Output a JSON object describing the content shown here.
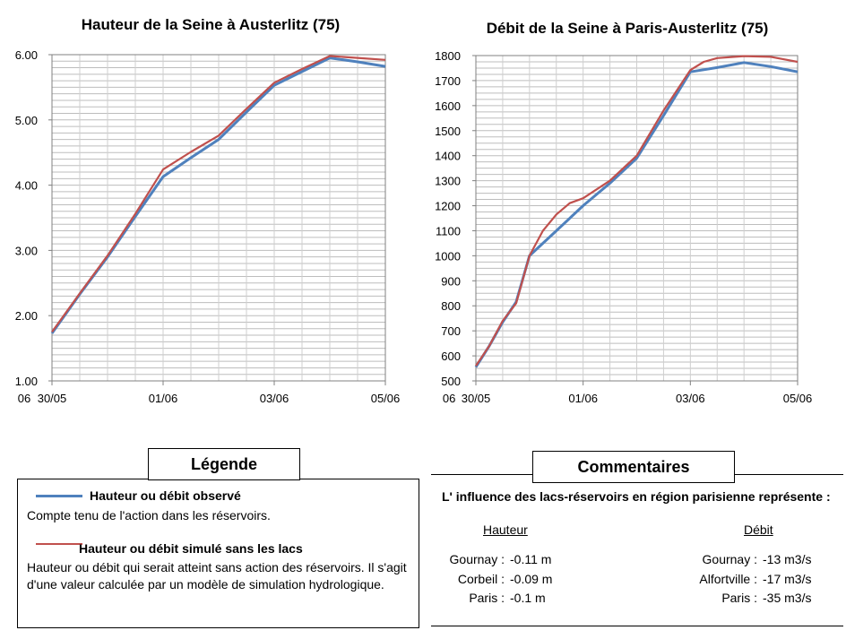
{
  "chart_data": [
    {
      "type": "line",
      "title": "Hauteur de la Seine à Austerlitz (75)",
      "x_ticks": [
        "06",
        "30/05",
        "01/06",
        "03/06",
        "05/06"
      ],
      "y_ticks": [
        "1.00",
        "2.00",
        "3.00",
        "4.00",
        "5.00",
        "6.00"
      ],
      "ylim": [
        1.0,
        6.0
      ],
      "xlim": [
        0,
        6
      ],
      "grid": true,
      "series": [
        {
          "name": "Hauteur ou débit observé",
          "color": "#4f81bd",
          "x": [
            0,
            0.5,
            1,
            1.5,
            2,
            2.5,
            3,
            3.5,
            4,
            4.5,
            5,
            5.5,
            6
          ],
          "y": [
            1.73,
            2.33,
            2.9,
            3.52,
            4.13,
            4.42,
            4.7,
            5.12,
            5.53,
            5.74,
            5.95,
            5.89,
            5.82
          ]
        },
        {
          "name": "Hauteur ou débit simulé sans les lacs",
          "color": "#c0504d",
          "x": [
            0,
            0.5,
            1,
            1.5,
            2,
            2.5,
            3,
            3.5,
            4,
            4.5,
            5,
            5.5,
            6
          ],
          "y": [
            1.75,
            2.34,
            2.92,
            3.56,
            4.24,
            4.51,
            4.76,
            5.17,
            5.57,
            5.78,
            5.98,
            5.95,
            5.92
          ]
        }
      ]
    },
    {
      "type": "line",
      "title": "Débit de la Seine à Paris-Austerlitz (75)",
      "x_ticks": [
        "06",
        "30/05",
        "01/06",
        "03/06",
        "05/06"
      ],
      "y_ticks": [
        "500",
        "600",
        "700",
        "800",
        "900",
        "1000",
        "1100",
        "1200",
        "1300",
        "1400",
        "1500",
        "1600",
        "1700",
        "1800"
      ],
      "ylim": [
        500,
        1800
      ],
      "xlim": [
        0,
        6
      ],
      "grid": true,
      "series": [
        {
          "name": "Hauteur ou débit observé",
          "color": "#4f81bd",
          "x": [
            0,
            0.25,
            0.5,
            0.75,
            1,
            1.5,
            2,
            2.5,
            3,
            3.5,
            4,
            4.5,
            5,
            5.5,
            6
          ],
          "y": [
            555,
            640,
            735,
            815,
            1000,
            1100,
            1200,
            1290,
            1390,
            1560,
            1735,
            1752,
            1772,
            1756,
            1735
          ]
        },
        {
          "name": "Hauteur ou débit simulé sans les lacs",
          "color": "#c0504d",
          "x": [
            0,
            0.25,
            0.5,
            0.75,
            1,
            1.25,
            1.5,
            1.75,
            2,
            2.5,
            3,
            3.5,
            4,
            4.25,
            4.5,
            5,
            5.5,
            6
          ],
          "y": [
            560,
            640,
            740,
            810,
            1000,
            1100,
            1165,
            1210,
            1230,
            1300,
            1400,
            1580,
            1742,
            1775,
            1790,
            1798,
            1795,
            1775
          ]
        }
      ]
    }
  ],
  "legend": {
    "header": "Légende",
    "observed_title": "Hauteur ou débit observé",
    "observed_text": "Compte tenu de l'action dans les réservoirs.",
    "simulated_title": "Hauteur ou débit simulé sans les lacs",
    "simulated_text": "Hauteur ou débit qui serait atteint sans action des réservoirs. Il s'agit d'une valeur calculée par un modèle de simulation hydrologique."
  },
  "comments": {
    "header": "Commentaires",
    "intro": "L' influence des lacs-réservoirs en région parisienne représente :",
    "hauteur_head": "Hauteur",
    "debit_head": "Débit",
    "hauteur_rows": [
      {
        "label": "Gournay :",
        "value": "-0.11 m"
      },
      {
        "label": "Corbeil :",
        "value": "-0.09 m"
      },
      {
        "label": "Paris :",
        "value": "-0.1 m"
      }
    ],
    "debit_rows": [
      {
        "label": "Gournay :",
        "value": "-13 m3/s"
      },
      {
        "label": "Alfortville :",
        "value": "-17 m3/s"
      },
      {
        "label": "Paris :",
        "value": "-35 m3/s"
      }
    ]
  }
}
